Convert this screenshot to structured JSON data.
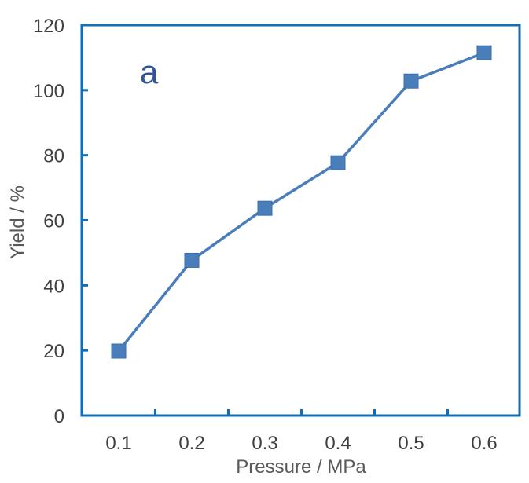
{
  "chart_data": {
    "type": "line",
    "panel_label": "a",
    "xlabel": "Pressure / MPa",
    "ylabel": "Yield / %",
    "x": [
      0.1,
      0.2,
      0.3,
      0.4,
      0.5,
      0.6
    ],
    "x_tick_labels": [
      "0.1",
      "0.2",
      "0.3",
      "0.4",
      "0.5",
      "0.6"
    ],
    "y_ticks": [
      0,
      20,
      40,
      60,
      80,
      100,
      120
    ],
    "ylim": [
      0,
      120
    ],
    "grid": false,
    "legend": "none",
    "series": [
      {
        "values": [
          19.8,
          47.7,
          63.7,
          77.7,
          102.8,
          111.5
        ],
        "color": "#4a7ebb",
        "marker": "square"
      }
    ],
    "frame_color": "#0e6eb8"
  }
}
